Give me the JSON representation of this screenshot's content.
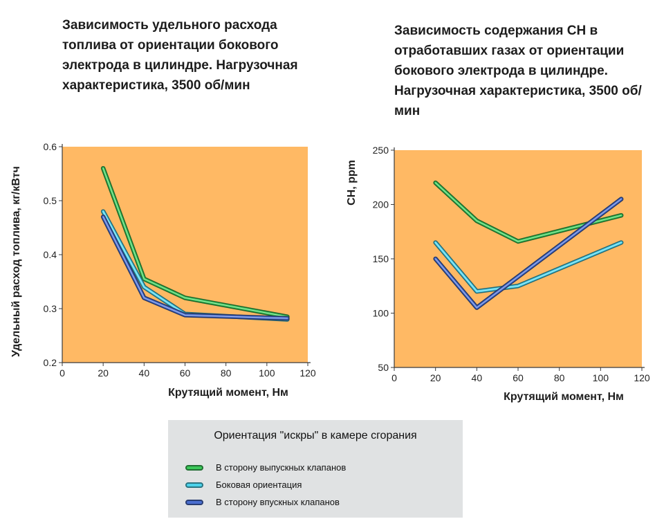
{
  "chart_data": [
    {
      "type": "line",
      "title": "Зависимость удельного расхода топлива от ориентации бокового электрода в цилиндре. Нагрузочная характеристика, 3500 об/мин",
      "xlabel": "Крутящий момент, Нм",
      "ylabel": "Удельный расход топлива, кг/кВтч",
      "xlim": [
        0,
        120
      ],
      "ylim": [
        0.2,
        0.6
      ],
      "xticks": [
        0,
        20,
        40,
        60,
        80,
        100,
        120
      ],
      "yticks": [
        0.2,
        0.3,
        0.4,
        0.5,
        0.6
      ],
      "ytick_labels": [
        "0.2",
        "0.3",
        "0.4",
        "0.5",
        "0.6"
      ],
      "grid": false,
      "background": "#ffb964",
      "series": [
        {
          "name": "В сторону выпускных клапанов",
          "color": "#3cc85a",
          "x": [
            20,
            40,
            60,
            110
          ],
          "y": [
            0.56,
            0.355,
            0.32,
            0.285
          ]
        },
        {
          "name": "Боковая ориентация",
          "color": "#4cd2ea",
          "x": [
            20,
            40,
            60,
            110
          ],
          "y": [
            0.48,
            0.34,
            0.29,
            0.28
          ]
        },
        {
          "name": "В сторону впускных клапанов",
          "color": "#4a6ed0",
          "x": [
            20,
            40,
            60,
            110
          ],
          "y": [
            0.47,
            0.32,
            0.288,
            0.282
          ]
        }
      ]
    },
    {
      "type": "line",
      "title": "Зависимость содержания CH в отработавших газах от ориентации бокового электрода в цилиндре. Нагрузочная характеристика, 3500 об/мин",
      "xlabel": "Крутящий момент, Нм",
      "ylabel": "CH, ppm",
      "xlim": [
        0,
        120
      ],
      "ylim": [
        50,
        250
      ],
      "xticks": [
        0,
        20,
        40,
        60,
        80,
        100,
        120
      ],
      "yticks": [
        50,
        100,
        150,
        200,
        250
      ],
      "ytick_labels": [
        "50",
        "100",
        "150",
        "200",
        "250"
      ],
      "grid": false,
      "background": "#ffb964",
      "series": [
        {
          "name": "В сторону выпускных клапанов",
          "color": "#3cc85a",
          "x": [
            20,
            40,
            60,
            110
          ],
          "y": [
            220,
            185,
            166,
            190
          ]
        },
        {
          "name": "Боковая ориентация",
          "color": "#4cd2ea",
          "x": [
            20,
            40,
            60,
            110
          ],
          "y": [
            165,
            120,
            125,
            165
          ]
        },
        {
          "name": "В сторону впускных клапанов",
          "color": "#4a6ed0",
          "x": [
            20,
            40,
            110
          ],
          "y": [
            150,
            105,
            205
          ]
        }
      ]
    }
  ],
  "legend": {
    "title": "Ориентация \"искры\" в камере сгорания",
    "items": [
      {
        "label": "В сторону выпускных клапанов",
        "color": "#3cc85a"
      },
      {
        "label": "Боковая ориентация",
        "color": "#4cd2ea"
      },
      {
        "label": "В сторону впускных клапанов",
        "color": "#4a6ed0"
      }
    ]
  }
}
